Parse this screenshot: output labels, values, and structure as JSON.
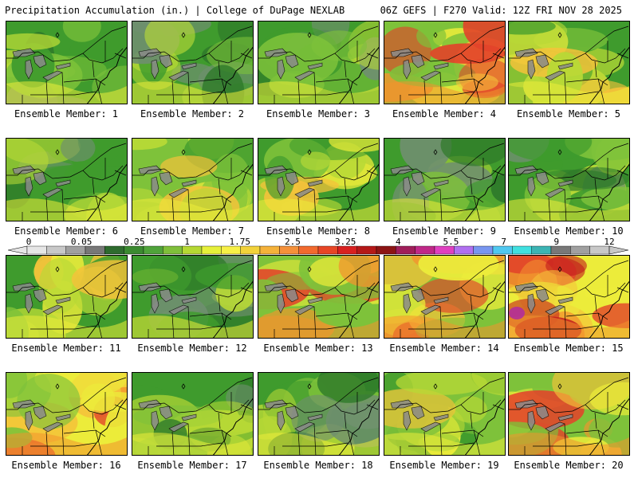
{
  "header": {
    "left_title": "Precipitation Accumulation (in.) | College of DuPage NEXLAB",
    "right_title": "06Z GEFS | F270 Valid: 12Z FRI NOV 28 2025"
  },
  "caption_prefix": "Ensemble Member:",
  "members": [
    {
      "label": "Ensemble Member: 1",
      "number": 1,
      "intensity": 0.35
    },
    {
      "label": "Ensemble Member: 2",
      "number": 2,
      "intensity": 0.3
    },
    {
      "label": "Ensemble Member: 3",
      "number": 3,
      "intensity": 0.2
    },
    {
      "label": "Ensemble Member: 4",
      "number": 4,
      "intensity": 0.55
    },
    {
      "label": "Ensemble Member: 5",
      "number": 5,
      "intensity": 0.4
    },
    {
      "label": "Ensemble Member: 6",
      "number": 6,
      "intensity": 0.3
    },
    {
      "label": "Ensemble Member: 7",
      "number": 7,
      "intensity": 0.45
    },
    {
      "label": "Ensemble Member: 8",
      "number": 8,
      "intensity": 0.4
    },
    {
      "label": "Ensemble Member: 9",
      "number": 9,
      "intensity": 0.25
    },
    {
      "label": "Ensemble Member: 10",
      "number": 10,
      "intensity": 0.3
    },
    {
      "label": "Ensemble Member: 11",
      "number": 11,
      "intensity": 0.4
    },
    {
      "label": "Ensemble Member: 12",
      "number": 12,
      "intensity": 0.3
    },
    {
      "label": "Ensemble Member: 13",
      "number": 13,
      "intensity": 0.55
    },
    {
      "label": "Ensemble Member: 14",
      "number": 14,
      "intensity": 0.55
    },
    {
      "label": "Ensemble Member: 15",
      "number": 15,
      "intensity": 0.8
    },
    {
      "label": "Ensemble Member: 16",
      "number": 16,
      "intensity": 0.65
    },
    {
      "label": "Ensemble Member: 17",
      "number": 17,
      "intensity": 0.35
    },
    {
      "label": "Ensemble Member: 18",
      "number": 18,
      "intensity": 0.3
    },
    {
      "label": "Ensemble Member: 19",
      "number": 19,
      "intensity": 0.45
    },
    {
      "label": "Ensemble Member: 20",
      "number": 20,
      "intensity": 0.55
    }
  ],
  "colorbar": {
    "tick_labels": [
      "0",
      "0.05",
      "0.25",
      "1",
      "1.75",
      "2.5",
      "3.25",
      "4",
      "5.5",
      "7",
      "9",
      "12"
    ],
    "colors": [
      "#e6e6e6",
      "#c8c8c8",
      "#a0a0a0",
      "#787878",
      "#2e6b2e",
      "#3b8a30",
      "#4fa33a",
      "#7fbf3a",
      "#b5d833",
      "#e6f03a",
      "#f7f046",
      "#f2d23a",
      "#f5b23a",
      "#f5913a",
      "#f26a2e",
      "#e84626",
      "#d92020",
      "#b51818",
      "#8c1414",
      "#a01e5a",
      "#c02888",
      "#e040c0",
      "#b070f0",
      "#7896f0",
      "#50c8f0",
      "#40e0e0",
      "#3cb4b4",
      "#787878",
      "#a0a0a0",
      "#c8c8c8"
    ]
  },
  "map_colors": {
    "dark_green": "#2f7a2a",
    "green": "#3f9b2d",
    "light_green": "#7ec23a",
    "yellow_green": "#b8d936",
    "yellow": "#ecec3a",
    "light_orange": "#f5c23a",
    "orange": "#f2942e",
    "red": "#e2432a",
    "dark_red": "#c21c1c",
    "magenta": "#b02aa0",
    "gray": "#6f8f6f"
  }
}
